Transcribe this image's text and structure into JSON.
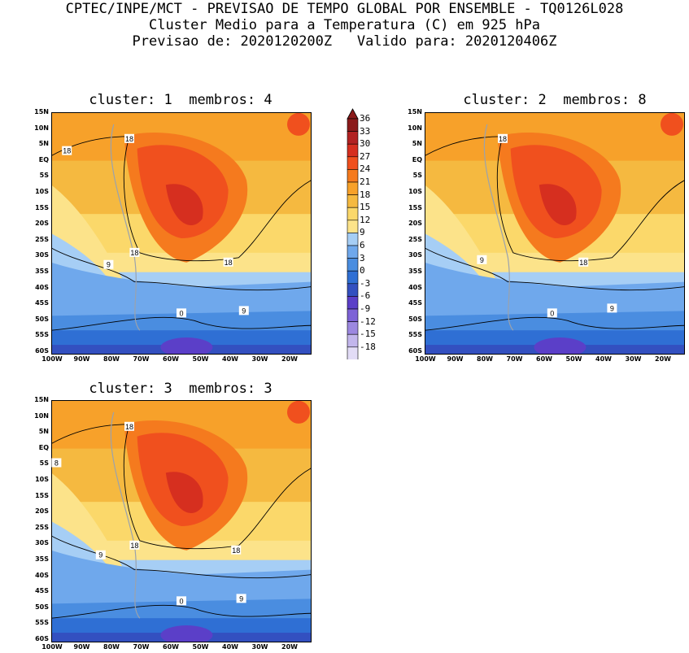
{
  "header": {
    "line1": "CPTEC/INPE/MCT - PREVISAO DE TEMPO GLOBAL POR ENSEMBLE - TQ0126L028",
    "line2": "Cluster Medio para a Temperatura (C) em 925 hPa",
    "line3": "Previsao de: 2020120200Z   Valido para: 2020120406Z"
  },
  "panels": [
    {
      "title": "cluster: 1  membros: 4",
      "contour_labels": [
        "18",
        "18",
        "18",
        "18",
        "9",
        "9",
        "0"
      ]
    },
    {
      "title": "cluster: 2  membros: 8",
      "contour_labels": [
        "18",
        "18",
        "9",
        "9",
        "0"
      ]
    },
    {
      "title": "cluster: 3  membros: 3",
      "contour_labels": [
        "18",
        "18",
        "18",
        "8",
        "9",
        "9",
        "0"
      ]
    }
  ],
  "lat_labels": [
    "15N",
    "10N",
    "5N",
    "EQ",
    "5S",
    "10S",
    "15S",
    "20S",
    "25S",
    "30S",
    "35S",
    "40S",
    "45S",
    "50S",
    "55S",
    "60S"
  ],
  "lon_labels": [
    "100W",
    "90W",
    "80W",
    "70W",
    "60W",
    "50W",
    "40W",
    "30W",
    "20W"
  ],
  "colorbar": {
    "labels": [
      "36",
      "33",
      "30",
      "27",
      "24",
      "21",
      "18",
      "15",
      "12",
      "9",
      "6",
      "3",
      "0",
      "-3",
      "-6",
      "-9",
      "-12",
      "-15",
      "-18"
    ],
    "colors": [
      "#8b1a1a",
      "#b22222",
      "#d62f1f",
      "#f0501e",
      "#f57a1e",
      "#f7a12a",
      "#f5b940",
      "#fbd86a",
      "#fce38a",
      "#a6cef5",
      "#6fa8ec",
      "#4a8de0",
      "#2f6fd4",
      "#3350c0",
      "#5b3fc8",
      "#7d62d6",
      "#9c88e0",
      "#c2b6ec",
      "#e2dcf6"
    ]
  }
}
